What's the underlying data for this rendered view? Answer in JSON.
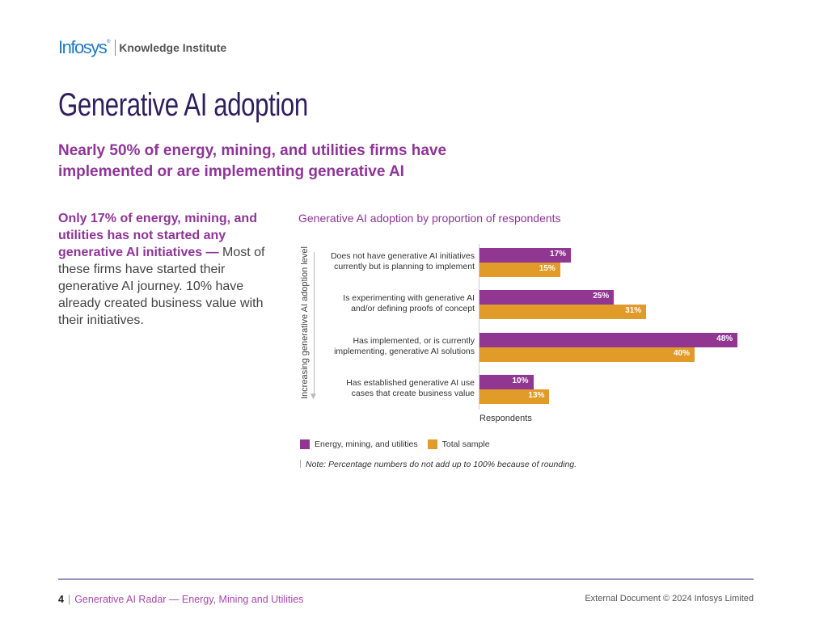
{
  "header": {
    "brand": "Infosys",
    "registered": "®",
    "institute": "Knowledge Institute"
  },
  "page": {
    "title": "Generative AI adoption",
    "subtitle": "Nearly 50% of energy, mining, and utilities firms have implemented or are implementing generative AI"
  },
  "sidebar": {
    "highlight": "Only 17% of energy, mining, and utilities has not started any generative AI initiatives",
    "dash": " — ",
    "body": "Most of these firms have started their generative AI journey. 10% have already created business value with their initiatives."
  },
  "colors": {
    "energy": "#923791",
    "total": "#e09b29",
    "accent": "#8e3597",
    "title": "#2e1f5e"
  },
  "chart_data": {
    "type": "bar",
    "orientation": "horizontal",
    "title": "Generative AI adoption by proportion of respondents",
    "xlabel": "Respondents",
    "ylabel": "Increasing generative AI adoption level",
    "xlim": [
      0,
      50
    ],
    "grid": false,
    "legend_position": "bottom-left",
    "categories": [
      "Does not have generative AI initiatives currently but is planning to implement",
      "Is experimenting with generative AI and/or defining proofs of concept",
      "Has implemented, or is currently implementing, generative AI solutions",
      "Has established generative AI use cases that create business value"
    ],
    "category_lines": [
      [
        "Does not have generative AI initiatives",
        "currently but is planning to implement"
      ],
      [
        "Is experimenting with generative AI",
        "and/or defining proofs of concept"
      ],
      [
        "Has implemented, or is currently",
        "implementing, generative AI solutions"
      ],
      [
        "Has established generative AI use",
        "cases that create business value"
      ]
    ],
    "series": [
      {
        "name": "Energy, mining, and utilities",
        "values": [
          17,
          25,
          48,
          10
        ]
      },
      {
        "name": "Total sample",
        "values": [
          15,
          31,
          40,
          13
        ]
      }
    ],
    "value_suffix": "%",
    "note": "Note: Percentage numbers do not add up to 100% because of rounding."
  },
  "footer": {
    "page_number": "4",
    "separator": "|",
    "document_title": "Generative AI Radar — Energy, Mining and Utilities",
    "copyright": "External Document © 2024 Infosys Limited"
  }
}
